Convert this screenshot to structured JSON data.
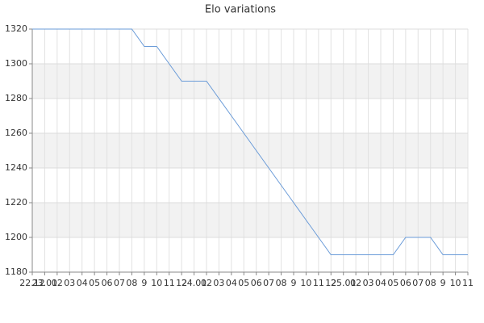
{
  "chart_data": {
    "type": "line",
    "title": "Elo variations",
    "categories": [
      "22.12",
      "23.01",
      "02",
      "03",
      "04",
      "05",
      "06",
      "07",
      "08",
      "9",
      "10",
      "11",
      "12",
      "24.01",
      "02",
      "03",
      "04",
      "05",
      "06",
      "07",
      "08",
      "9",
      "10",
      "11",
      "12",
      "25.01",
      "02",
      "03",
      "04",
      "05",
      "06",
      "07",
      "08",
      "9",
      "10",
      "11"
    ],
    "series": [
      {
        "name": "Elo",
        "color": "#6a9bd8",
        "values": [
          1320,
          1320,
          1320,
          1320,
          1320,
          1320,
          1320,
          1320,
          1320,
          1310,
          1310,
          1300,
          1290,
          1290,
          1290,
          1280,
          1270,
          1260,
          1250,
          1240,
          1230,
          1220,
          1210,
          1200,
          1190,
          1190,
          1190,
          1190,
          1190,
          1190,
          1200,
          1200,
          1200,
          1190,
          1190,
          1190
        ]
      }
    ],
    "ylim": [
      1180,
      1320
    ],
    "yticks": [
      1180,
      1200,
      1220,
      1240,
      1260,
      1280,
      1300,
      1320
    ],
    "grid": true
  }
}
